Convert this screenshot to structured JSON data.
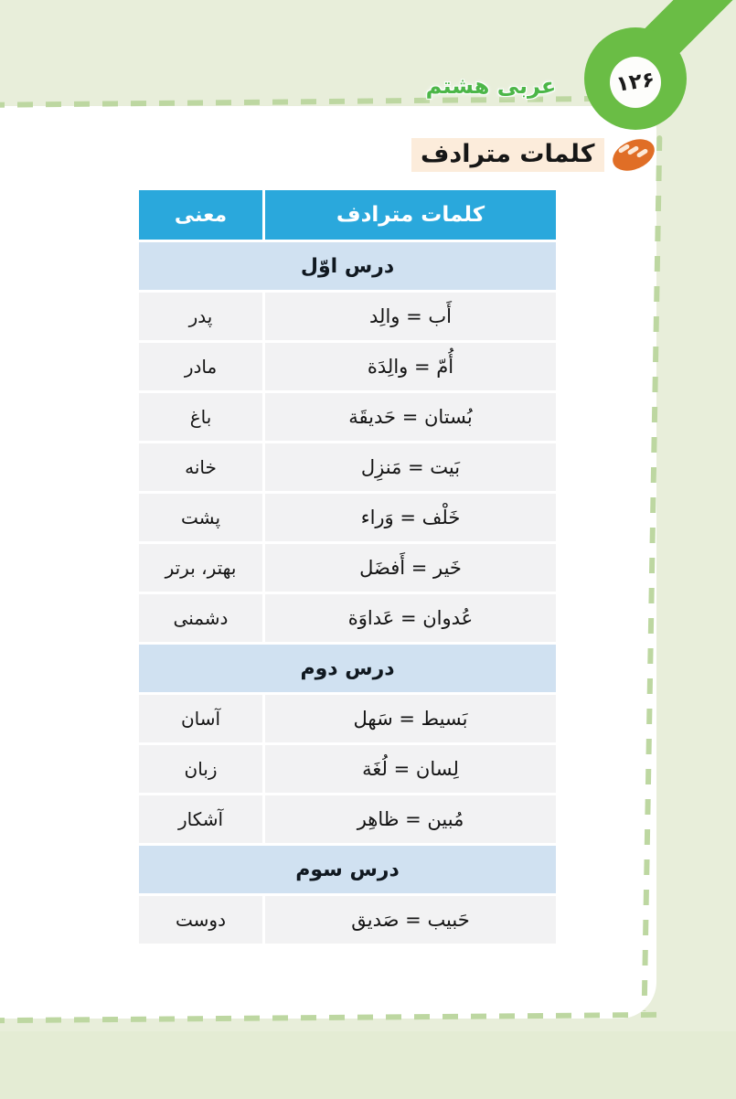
{
  "page": {
    "number_fa": "۱۲۶",
    "book_title": "عربی هشتم"
  },
  "heading": {
    "title": "کلمات مترادف",
    "icon": "bread-icon"
  },
  "table": {
    "headers": {
      "synonyms": "کلمات مترادف",
      "meaning": "معنی"
    },
    "rows": [
      {
        "type": "section",
        "label": "درس اوّل"
      },
      {
        "type": "pair",
        "synonyms": "أَب = والِد",
        "meaning": "پدر"
      },
      {
        "type": "pair",
        "synonyms": "أُمّ = والِدَة",
        "meaning": "مادر"
      },
      {
        "type": "pair",
        "synonyms": "بُستان = حَدیقَة",
        "meaning": "باغ"
      },
      {
        "type": "pair",
        "synonyms": "بَیت = مَنزِل",
        "meaning": "خانه"
      },
      {
        "type": "pair",
        "synonyms": "خَلْف = وَراء",
        "meaning": "پشت"
      },
      {
        "type": "pair",
        "synonyms": "خَیر = أَفضَل",
        "meaning": "بهتر، برتر"
      },
      {
        "type": "pair",
        "synonyms": "عُدوان = عَداوَة",
        "meaning": "دشمنی"
      },
      {
        "type": "section",
        "label": "درس دوم"
      },
      {
        "type": "pair",
        "synonyms": "بَسیط = سَهل",
        "meaning": "آسان"
      },
      {
        "type": "pair",
        "synonyms": "لِسان = لُغَة",
        "meaning": "زبان"
      },
      {
        "type": "pair",
        "synonyms": "مُبین = ظاهِر",
        "meaning": "آشکار"
      },
      {
        "type": "section",
        "label": "درس سوم"
      },
      {
        "type": "pair",
        "synonyms": "حَبیب = صَدیق",
        "meaning": "دوست"
      }
    ]
  },
  "colors": {
    "accent_green": "#6abd45",
    "title_green": "#4cb648",
    "dash_green": "#bdd7a1",
    "background_green": "#e8eeda",
    "header_blue": "#2aa8dc",
    "section_blue": "#d0e1f1",
    "row_gray": "#f2f2f3",
    "heading_peach": "#fcecdb",
    "bread_orange": "#e06e26"
  }
}
